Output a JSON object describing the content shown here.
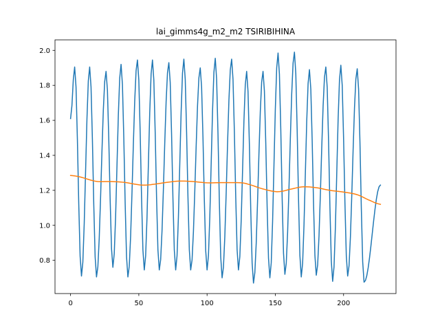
{
  "chart_data": {
    "type": "line",
    "title": "lai_gimms4g_m2_m2 TSIRIBIHINA",
    "xlabel": "",
    "ylabel": "",
    "xlim": [
      -11.4,
      238.4
    ],
    "ylim": [
      0.61,
      2.06
    ],
    "xticks": [
      0,
      50,
      100,
      150,
      200
    ],
    "yticks": [
      0.8,
      1.0,
      1.2,
      1.4,
      1.6,
      1.8,
      2.0
    ],
    "xtick_labels": [
      "0",
      "50",
      "100",
      "150",
      "200"
    ],
    "ytick_labels": [
      "0.8",
      "1.0",
      "1.2",
      "1.4",
      "1.6",
      "1.8",
      "2.0"
    ],
    "grid": false,
    "legend": "none",
    "series": [
      {
        "color": "#1f77b4",
        "kind": "seasonal",
        "x_start": 0,
        "x_end": 227,
        "start_value": 1.61,
        "end_value": 1.23,
        "cycles": [
          {
            "peak_x": 3,
            "peak": 1.905,
            "trough_x": 8,
            "trough": 0.71
          },
          {
            "peak_x": 14,
            "peak": 1.905,
            "trough_x": 19,
            "trough": 0.705
          },
          {
            "peak_x": 26,
            "peak": 1.88,
            "trough_x": 31,
            "trough": 0.76
          },
          {
            "peak_x": 37,
            "peak": 1.92,
            "trough_x": 42,
            "trough": 0.705
          },
          {
            "peak_x": 49,
            "peak": 1.945,
            "trough_x": 54,
            "trough": 0.745
          },
          {
            "peak_x": 60,
            "peak": 1.945,
            "trough_x": 65,
            "trough": 0.745
          },
          {
            "peak_x": 72,
            "peak": 1.93,
            "trough_x": 77,
            "trough": 0.745
          },
          {
            "peak_x": 83,
            "peak": 1.95,
            "trough_x": 88,
            "trough": 0.745
          },
          {
            "peak_x": 95,
            "peak": 1.9,
            "trough_x": 100,
            "trough": 0.745
          },
          {
            "peak_x": 106,
            "peak": 1.955,
            "trough_x": 111,
            "trough": 0.7
          },
          {
            "peak_x": 118,
            "peak": 1.95,
            "trough_x": 123,
            "trough": 0.745
          },
          {
            "peak_x": 129,
            "peak": 1.88,
            "trough_x": 134,
            "trough": 0.67
          },
          {
            "peak_x": 141,
            "peak": 1.88,
            "trough_x": 146,
            "trough": 0.7
          },
          {
            "peak_x": 152,
            "peak": 1.985,
            "trough_x": 157,
            "trough": 0.72
          },
          {
            "peak_x": 164,
            "peak": 1.99,
            "trough_x": 169,
            "trough": 0.705
          },
          {
            "peak_x": 175,
            "peak": 1.89,
            "trough_x": 180,
            "trough": 0.715
          },
          {
            "peak_x": 187,
            "peak": 1.905,
            "trough_x": 192,
            "trough": 0.68
          },
          {
            "peak_x": 198,
            "peak": 1.915,
            "trough_x": 203,
            "trough": 0.71
          },
          {
            "peak_x": 210,
            "peak": 1.895,
            "trough_x": 215,
            "trough": 0.675
          },
          {
            "peak_x": 221,
            "peak": 1.23,
            "trough_x": 225,
            "trough": 1.23
          }
        ]
      },
      {
        "color": "#ff7f0e",
        "kind": "smooth",
        "x": [
          0,
          5,
          10,
          15,
          20,
          30,
          40,
          50,
          55,
          60,
          70,
          80,
          90,
          100,
          110,
          120,
          125,
          130,
          140,
          150,
          155,
          160,
          170,
          180,
          190,
          200,
          210,
          220,
          227
        ],
        "y": [
          1.285,
          1.28,
          1.27,
          1.258,
          1.25,
          1.25,
          1.245,
          1.232,
          1.23,
          1.234,
          1.245,
          1.253,
          1.25,
          1.243,
          1.244,
          1.244,
          1.243,
          1.235,
          1.21,
          1.193,
          1.195,
          1.205,
          1.22,
          1.215,
          1.2,
          1.19,
          1.175,
          1.14,
          1.12
        ]
      }
    ]
  }
}
